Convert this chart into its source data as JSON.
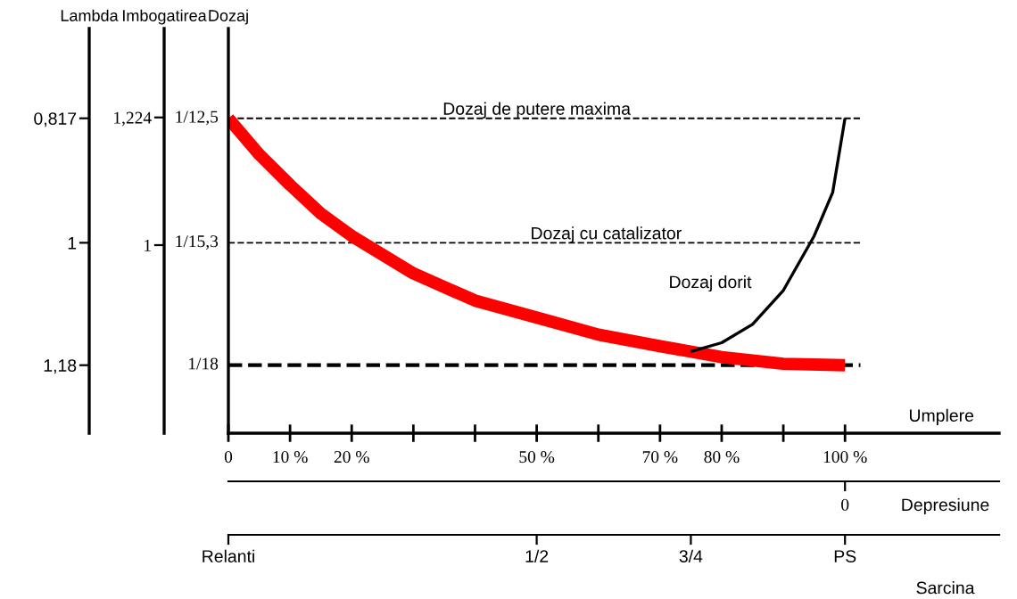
{
  "chart_data": {
    "type": "line",
    "x": [
      0,
      5,
      10,
      15,
      20,
      30,
      40,
      50,
      60,
      70,
      80,
      90,
      100
    ],
    "series": [
      {
        "color": "#ff0000",
        "values": [
          0.817,
          0.87,
          0.915,
          0.957,
          0.99,
          1.045,
          1.085,
          1.11,
          1.135,
          1.152,
          1.168,
          1.178,
          1.18
        ]
      },
      {
        "color": "#000000",
        "x": [
          75,
          80,
          85,
          90,
          95,
          98,
          100
        ],
        "values": [
          1.16,
          1.147,
          1.12,
          1.07,
          0.99,
          0.926,
          0.817
        ]
      }
    ],
    "xlim": [
      0,
      125
    ],
    "ylim": [
      1.28,
      0.685
    ],
    "xticks": [
      0,
      {
        "value": 10,
        "label": "10 %"
      },
      {
        "value": 20,
        "label": "20 %"
      },
      {
        "value": 30,
        "label": null
      },
      {
        "value": 40,
        "label": null
      },
      {
        "value": 50,
        "label": "50 %"
      },
      {
        "value": 60,
        "label": null
      },
      {
        "value": 70,
        "label": "70 %"
      },
      {
        "value": 80,
        "label": "80 %"
      },
      {
        "value": 90,
        "label": null
      },
      {
        "value": 100,
        "label": "100 %"
      }
    ],
    "yticks": [
      {
        "value": 0.817,
        "label": "0,817"
      },
      1,
      {
        "value": 1.18,
        "label": "1,18"
      }
    ],
    "xlabel": "Umplere",
    "y2label": "Imbogatirea",
    "y2lim": [
      0.67,
      1.38
    ],
    "y2ticks": [
      {
        "value": 1.224,
        "label": "1,224"
      },
      1
    ],
    "x2label": "Sarcina",
    "x2lim": [
      0,
      1.25
    ],
    "x2ticks": [
      {
        "value": 0,
        "label": "Relanti"
      },
      {
        "value": 0.5,
        "label": "1/2"
      },
      {
        "value": 0.75,
        "label": "3/4"
      },
      {
        "value": 1,
        "label": "PS"
      }
    ],
    "ref_lines": [
      {
        "axis": "y",
        "value": 0.817,
        "label": "Dozaj de putere maxima",
        "line_style": "dashed"
      },
      {
        "axis": "y",
        "value": 1,
        "label": "Dozaj cu catalizator",
        "line_style": "dashed"
      },
      {
        "axis": "y",
        "value": 1.18,
        "line_style": "dashed"
      }
    ],
    "annotations": [
      "Dozaj dorit",
      "Depresiune",
      "0",
      "Dozaj",
      "Lambda",
      "1/12,5",
      "1/15,3",
      "1/18"
    ],
    "grid": false,
    "legend": false,
    "marker": "none",
    "line_style": "solid"
  }
}
